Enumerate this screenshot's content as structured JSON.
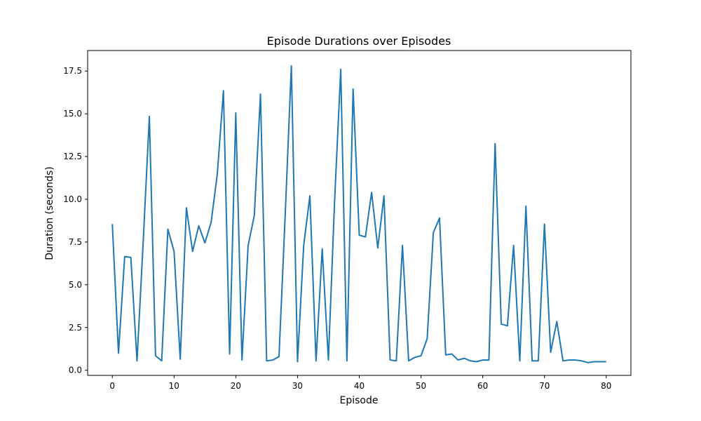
{
  "chart_data": {
    "type": "line",
    "title": "Episode Durations over Episodes",
    "xlabel": "Episode",
    "ylabel": "Duration (seconds)",
    "xlim": [
      -4,
      84
    ],
    "ylim": [
      -0.3,
      18.7
    ],
    "xticks": [
      0,
      10,
      20,
      30,
      40,
      50,
      60,
      70,
      80
    ],
    "yticks": [
      0.0,
      2.5,
      5.0,
      7.5,
      10.0,
      12.5,
      15.0,
      17.5
    ],
    "ytick_labels": [
      "0.0",
      "2.5",
      "5.0",
      "7.5",
      "10.0",
      "12.5",
      "15.0",
      "17.5"
    ],
    "grid": false,
    "line_color": "#1f77b4",
    "series": [
      {
        "x": [
          0,
          1,
          2,
          3,
          4,
          5,
          6,
          7,
          8,
          9,
          10,
          11,
          12,
          13,
          14,
          15,
          16,
          17,
          18,
          19,
          20,
          21,
          22,
          23,
          24,
          25,
          26,
          27,
          28,
          29,
          30,
          31,
          32,
          33,
          34,
          35,
          36,
          37,
          38,
          39,
          40,
          41,
          42,
          43,
          44,
          45,
          46,
          47,
          48,
          49,
          50,
          51,
          52,
          53,
          54,
          55,
          56,
          57,
          58,
          59,
          60,
          61,
          62,
          63,
          64,
          65,
          66,
          67,
          68,
          69,
          70,
          71,
          72,
          73,
          74,
          75,
          76,
          77,
          78,
          79,
          80
        ],
        "values": [
          8.55,
          1.0,
          6.65,
          6.6,
          0.55,
          7.5,
          14.85,
          0.85,
          0.55,
          8.25,
          6.95,
          0.65,
          9.5,
          6.95,
          8.45,
          7.45,
          8.65,
          11.45,
          16.35,
          0.95,
          15.05,
          0.6,
          7.3,
          9.05,
          16.15,
          0.55,
          0.6,
          0.8,
          9.05,
          17.8,
          0.5,
          7.3,
          10.2,
          0.55,
          7.1,
          0.6,
          9.85,
          17.6,
          0.55,
          16.45,
          7.9,
          7.8,
          10.4,
          7.15,
          10.2,
          0.6,
          0.55,
          7.3,
          0.55,
          0.75,
          0.85,
          1.85,
          8.05,
          8.9,
          0.9,
          0.95,
          0.6,
          0.7,
          0.55,
          0.5,
          0.6,
          0.6,
          13.25,
          2.7,
          2.6,
          7.3,
          0.55,
          9.6,
          0.55,
          0.55,
          8.55,
          1.05,
          2.85,
          0.55,
          0.6,
          0.6,
          0.55,
          0.45,
          0.5,
          0.5,
          0.5
        ]
      }
    ]
  }
}
